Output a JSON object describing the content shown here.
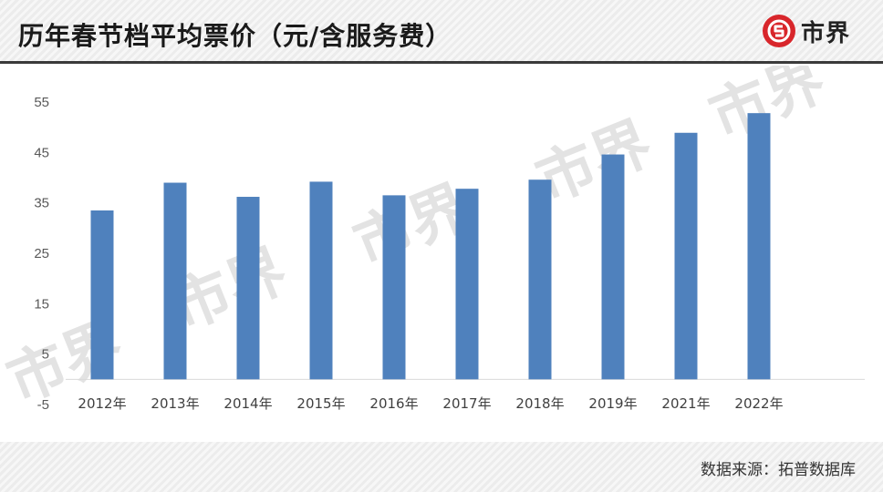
{
  "header": {
    "title": "历年春节档平均票价（元/含服务费）",
    "logo_text": "市界"
  },
  "footer": {
    "source": "数据来源：拓普数据库"
  },
  "chart_data": {
    "type": "bar",
    "categories": [
      "2012年",
      "2013年",
      "2014年",
      "2015年",
      "2016年",
      "2017年",
      "2018年",
      "2019年",
      "2021年",
      "2022年"
    ],
    "values": [
      33.5,
      39,
      36.2,
      39.2,
      36.5,
      37.8,
      39.6,
      44.6,
      48.9,
      52.8
    ],
    "title": "历年春节档平均票价（元/含服务费）",
    "xlabel": "",
    "ylabel": "",
    "ylim": [
      -5,
      55
    ],
    "yticks": [
      -5,
      5,
      15,
      25,
      35,
      45,
      55
    ],
    "grid": false,
    "bar_color": "#4f81bd"
  },
  "watermark": {
    "text": "市界",
    "color": "#e3e3e3"
  }
}
